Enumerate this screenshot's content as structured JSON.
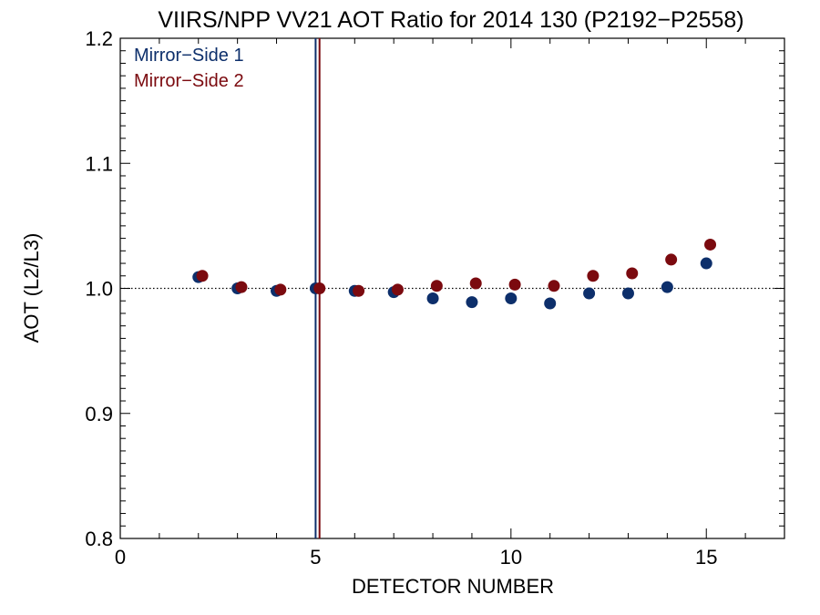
{
  "chart_data": {
    "type": "scatter",
    "title": "VIIRS/NPP VV21 AOT Ratio for 2014 130 (P2192−P2558)",
    "xlabel": "DETECTOR NUMBER",
    "ylabel": "AOT (L2/L3)",
    "xlim": [
      0,
      17
    ],
    "ylim": [
      0.8,
      1.2
    ],
    "xticks": [
      0,
      5,
      10,
      15
    ],
    "xtick_labels": [
      "0",
      "5",
      "10",
      "15"
    ],
    "yticks": [
      0.8,
      0.9,
      1.0,
      1.1,
      1.2
    ],
    "ytick_labels": [
      "0.8",
      "0.9",
      "1.0",
      "1.1",
      "1.2"
    ],
    "reference_line": {
      "y": 1.0,
      "style": "dotted"
    },
    "grid": false,
    "legend_position": "top-left",
    "series": [
      {
        "name": "Mirror−Side 1",
        "color": "#0d2f6b",
        "x": [
          2,
          3,
          4,
          5,
          6,
          7,
          8,
          9,
          10,
          11,
          12,
          13,
          14,
          15
        ],
        "y": [
          1.009,
          1.0,
          0.998,
          1.0,
          0.998,
          0.997,
          0.992,
          0.989,
          0.992,
          0.988,
          0.996,
          0.996,
          1.001,
          1.02
        ],
        "vertical_line_x": 5.0
      },
      {
        "name": "Mirror−Side 2",
        "color": "#7b0a0f",
        "x": [
          2.1,
          3.1,
          4.1,
          5.1,
          6.1,
          7.1,
          8.1,
          9.1,
          10.1,
          11.1,
          12.1,
          13.1,
          14.1,
          15.1
        ],
        "y": [
          1.01,
          1.001,
          0.999,
          1.0,
          0.998,
          0.999,
          1.002,
          1.004,
          1.003,
          1.002,
          1.01,
          1.012,
          1.023,
          1.035
        ],
        "vertical_line_x": 5.1
      }
    ]
  }
}
